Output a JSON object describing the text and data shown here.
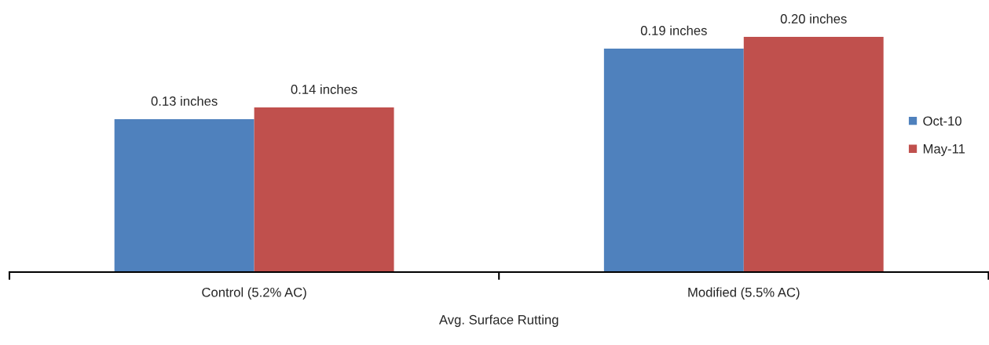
{
  "chart_data": {
    "type": "bar",
    "xlabel": "Avg. Surface Rutting",
    "categories": [
      "Control (5.2% AC)",
      "Modified (5.5% AC)"
    ],
    "series": [
      {
        "name": "Oct-10",
        "color": "#4f81bd",
        "values": [
          0.13,
          0.19
        ],
        "value_labels": [
          "0.13 inches",
          "0.19 inches"
        ]
      },
      {
        "name": "May-11",
        "color": "#c0504d",
        "values": [
          0.14,
          0.2
        ],
        "value_labels": [
          "0.14 inches",
          "0.20 inches"
        ]
      }
    ],
    "legend": "right",
    "grid": false
  }
}
